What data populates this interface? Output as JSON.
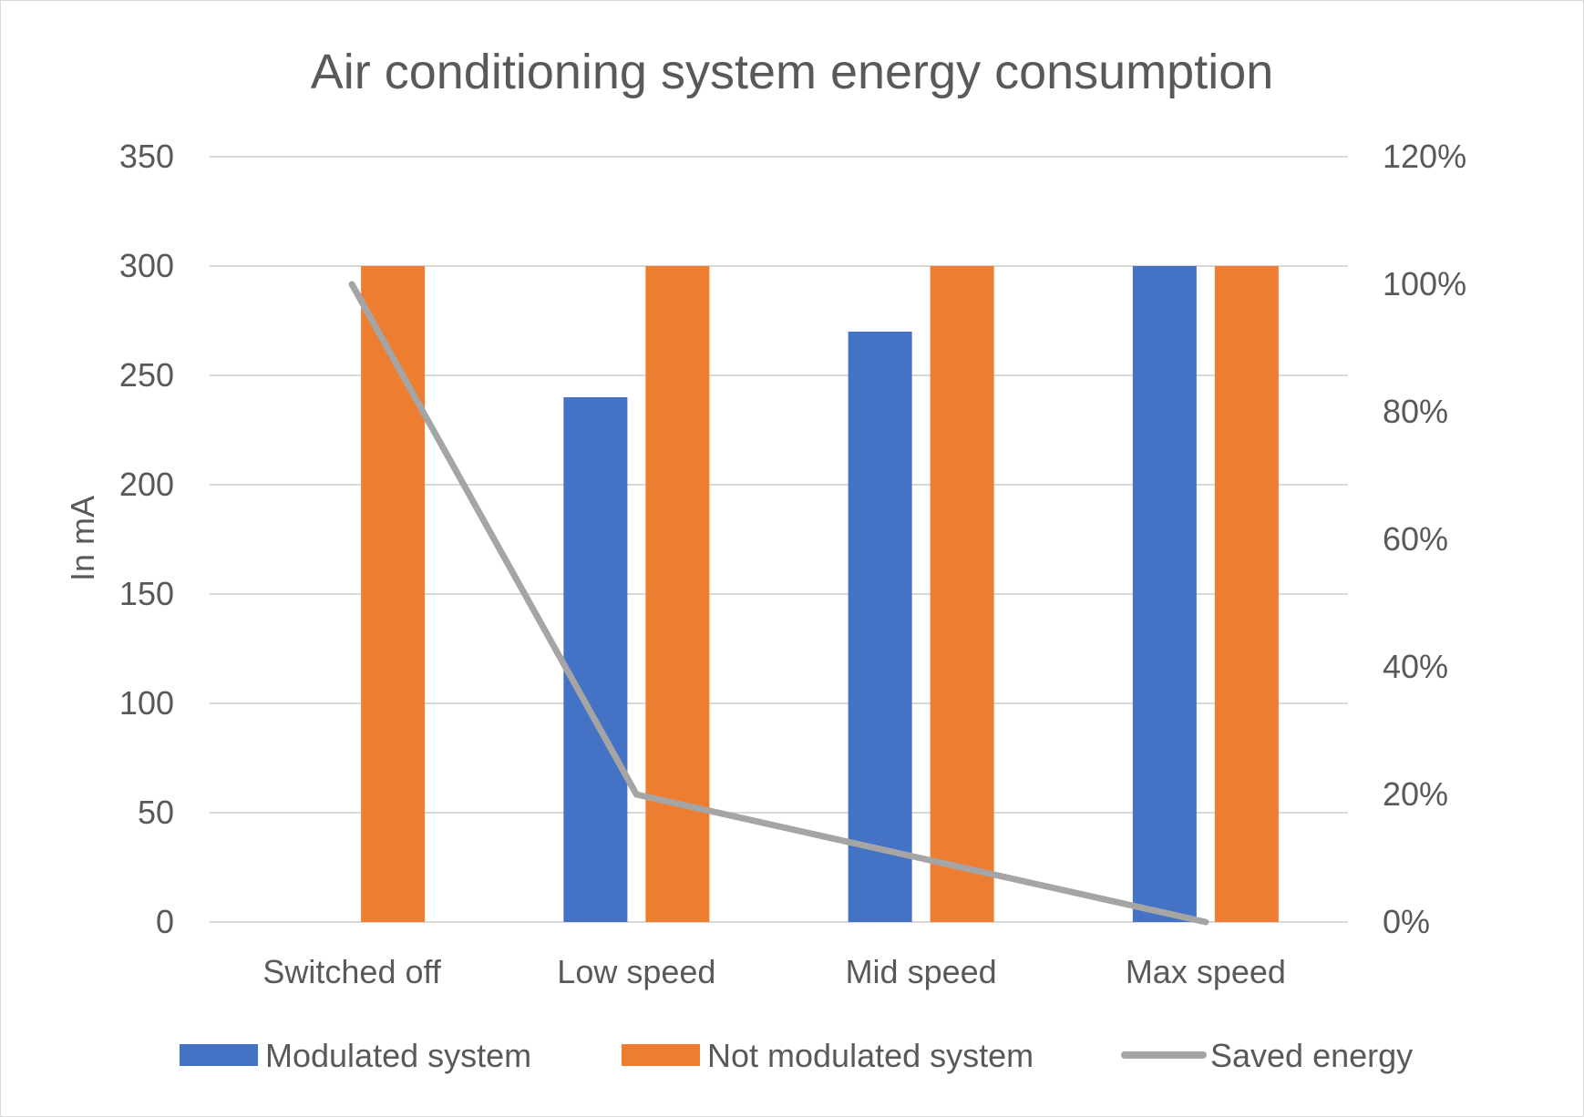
{
  "chart_data": {
    "type": "bar",
    "title": "Air conditioning system energy consumption",
    "xlabel": "",
    "ylabel": "In mA",
    "y2label": "",
    "categories": [
      "Switched off",
      "Low speed",
      "Mid speed",
      "Max speed"
    ],
    "ylim": [
      0,
      350
    ],
    "yticks": [
      0,
      50,
      100,
      150,
      200,
      250,
      300,
      350
    ],
    "ytick_labels": [
      "0",
      "50",
      "100",
      "150",
      "200",
      "250",
      "300",
      "350"
    ],
    "y2lim": [
      0,
      1.2
    ],
    "y2ticks": [
      0,
      0.2,
      0.4,
      0.6,
      0.8,
      1.0,
      1.2
    ],
    "y2tick_labels": [
      "0%",
      "20%",
      "40%",
      "60%",
      "80%",
      "100%",
      "120%"
    ],
    "grid": true,
    "legend_position": "bottom",
    "series": [
      {
        "name": "Modulated system",
        "type": "bar",
        "axis": "left",
        "color": "#4472C4",
        "values": [
          0,
          240,
          270,
          300
        ]
      },
      {
        "name": "Not modulated system",
        "type": "bar",
        "axis": "left",
        "color": "#ED7D31",
        "values": [
          300,
          300,
          300,
          300
        ]
      },
      {
        "name": "Saved energy",
        "type": "line",
        "axis": "right",
        "color": "#A5A5A5",
        "values": [
          1.0,
          0.2,
          0.1,
          0.0
        ]
      }
    ]
  }
}
